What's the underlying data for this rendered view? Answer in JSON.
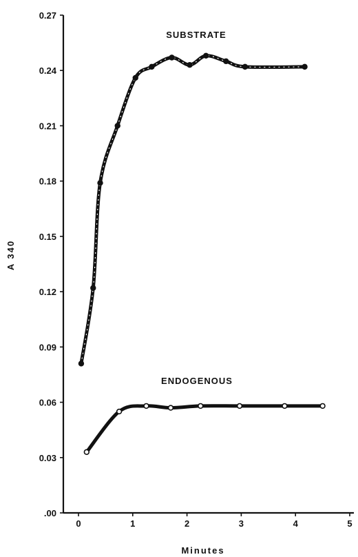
{
  "chart_data": {
    "type": "line",
    "title": "",
    "xlabel": "Minutes",
    "ylabel": "A 340",
    "xlim": [
      0,
      5
    ],
    "ylim": [
      0,
      0.27
    ],
    "x_ticks": [
      {
        "value": 0,
        "label": "0"
      },
      {
        "value": 1,
        "label": "1"
      },
      {
        "value": 2,
        "label": "2"
      },
      {
        "value": 3,
        "label": "3"
      },
      {
        "value": 4,
        "label": "4"
      },
      {
        "value": 5,
        "label": "5"
      }
    ],
    "y_ticks": [
      {
        "value": 0,
        "label": ".00"
      },
      {
        "value": 0.03,
        "label": "0.03"
      },
      {
        "value": 0.06,
        "label": "0.06"
      },
      {
        "value": 0.09,
        "label": "0.09"
      },
      {
        "value": 0.12,
        "label": "0.12"
      },
      {
        "value": 0.15,
        "label": "0.15"
      },
      {
        "value": 0.18,
        "label": "0.18"
      },
      {
        "value": 0.21,
        "label": "0.21"
      },
      {
        "value": 0.24,
        "label": "0.24"
      },
      {
        "value": 0.27,
        "label": "0.27"
      }
    ],
    "grid": false,
    "legend": "none",
    "series": [
      {
        "name": "SUBSTRATE",
        "marker": "filled",
        "x": [
          0.05,
          0.27,
          0.4,
          0.72,
          1.05,
          1.35,
          1.72,
          2.05,
          2.35,
          2.72,
          3.07,
          4.17
        ],
        "y": [
          0.081,
          0.122,
          0.179,
          0.21,
          0.236,
          0.242,
          0.247,
          0.243,
          0.248,
          0.245,
          0.242,
          0.242
        ]
      },
      {
        "name": "ENDOGENOUS",
        "marker": "open",
        "x": [
          0.15,
          0.75,
          1.25,
          1.7,
          2.25,
          2.97,
          3.8,
          4.5
        ],
        "y": [
          0.033,
          0.055,
          0.058,
          0.057,
          0.058,
          0.058,
          0.058,
          0.058
        ]
      }
    ]
  }
}
